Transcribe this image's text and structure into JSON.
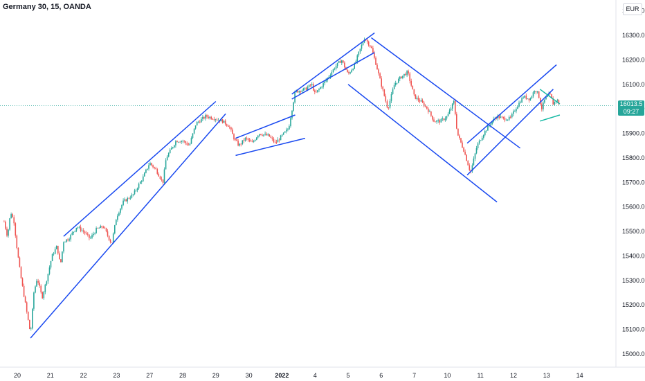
{
  "header": {
    "symbol_title": "Germany 30, 15, OANDA",
    "currency": "EUR"
  },
  "price_badge": {
    "price": "16013.5",
    "countdown": "09:27"
  },
  "colors": {
    "up": "#26a69a",
    "down": "#ef5350",
    "channel": "#1848f0",
    "triangle": "#16b9a4",
    "current_price_line": "#26a69a"
  },
  "chart_data": {
    "type": "candlestick",
    "title": "Germany 30, 15, OANDA",
    "ylim": [
      14950,
      16450
    ],
    "y_ticks": [
      15000,
      15100,
      15200,
      15300,
      15400,
      15500,
      15600,
      15700,
      15800,
      15900,
      16000,
      16100,
      16200,
      16300,
      16400
    ],
    "y_tick_labels": [
      "15000.0",
      "15100.0",
      "15200.0",
      "15300.0",
      "15400.0",
      "15500.0",
      "15600.0",
      "15700.0",
      "15800.0",
      "15900.0",
      "16000.0",
      "16100.0",
      "16200.0",
      "16300.0",
      "16400.0"
    ],
    "x_ticks": [
      {
        "label": "20",
        "t": 0
      },
      {
        "label": "21",
        "t": 1
      },
      {
        "label": "22",
        "t": 2
      },
      {
        "label": "23",
        "t": 3
      },
      {
        "label": "27",
        "t": 4
      },
      {
        "label": "28",
        "t": 5
      },
      {
        "label": "29",
        "t": 6
      },
      {
        "label": "30",
        "t": 7
      },
      {
        "label": "2022",
        "t": 8,
        "bold": true
      },
      {
        "label": "4",
        "t": 9
      },
      {
        "label": "5",
        "t": 10
      },
      {
        "label": "6",
        "t": 11
      },
      {
        "label": "7",
        "t": 12
      },
      {
        "label": "10",
        "t": 13
      },
      {
        "label": "11",
        "t": 14
      },
      {
        "label": "12",
        "t": 15
      },
      {
        "label": "13",
        "t": 16
      },
      {
        "label": "14",
        "t": 17
      }
    ],
    "current_price": 16013.5,
    "price_path": [
      [
        -0.4,
        15540
      ],
      [
        -0.3,
        15480
      ],
      [
        -0.2,
        15580
      ],
      [
        -0.1,
        15540
      ],
      [
        0.0,
        15420
      ],
      [
        0.1,
        15320
      ],
      [
        0.25,
        15200
      ],
      [
        0.4,
        15080
      ],
      [
        0.5,
        15250
      ],
      [
        0.6,
        15310
      ],
      [
        0.75,
        15230
      ],
      [
        0.9,
        15310
      ],
      [
        1.05,
        15400
      ],
      [
        1.2,
        15440
      ],
      [
        1.3,
        15360
      ],
      [
        1.4,
        15460
      ],
      [
        1.55,
        15470
      ],
      [
        1.8,
        15520
      ],
      [
        2.0,
        15500
      ],
      [
        2.2,
        15470
      ],
      [
        2.4,
        15510
      ],
      [
        2.6,
        15520
      ],
      [
        2.85,
        15450
      ],
      [
        3.0,
        15560
      ],
      [
        3.2,
        15620
      ],
      [
        3.5,
        15650
      ],
      [
        3.8,
        15720
      ],
      [
        4.0,
        15780
      ],
      [
        4.2,
        15750
      ],
      [
        4.4,
        15700
      ],
      [
        4.5,
        15800
      ],
      [
        4.8,
        15870
      ],
      [
        5.0,
        15870
      ],
      [
        5.2,
        15850
      ],
      [
        5.4,
        15940
      ],
      [
        5.7,
        15970
      ],
      [
        6.0,
        15960
      ],
      [
        6.2,
        15950
      ],
      [
        6.4,
        15930
      ],
      [
        6.55,
        15880
      ],
      [
        6.7,
        15850
      ],
      [
        6.9,
        15880
      ],
      [
        7.1,
        15860
      ],
      [
        7.3,
        15900
      ],
      [
        7.6,
        15890
      ],
      [
        7.8,
        15860
      ],
      [
        8.0,
        15890
      ],
      [
        8.2,
        15920
      ],
      [
        8.4,
        16070
      ],
      [
        8.7,
        16080
      ],
      [
        8.9,
        16100
      ],
      [
        9.0,
        16060
      ],
      [
        9.3,
        16110
      ],
      [
        9.6,
        16170
      ],
      [
        9.8,
        16200
      ],
      [
        10.0,
        16140
      ],
      [
        10.2,
        16180
      ],
      [
        10.3,
        16220
      ],
      [
        10.5,
        16290
      ],
      [
        10.7,
        16250
      ],
      [
        10.85,
        16180
      ],
      [
        11.0,
        16100
      ],
      [
        11.2,
        16000
      ],
      [
        11.4,
        16100
      ],
      [
        11.6,
        16130
      ],
      [
        11.8,
        16150
      ],
      [
        12.0,
        16050
      ],
      [
        12.2,
        16030
      ],
      [
        12.4,
        16000
      ],
      [
        12.6,
        15950
      ],
      [
        12.8,
        15950
      ],
      [
        13.0,
        15970
      ],
      [
        13.2,
        16030
      ],
      [
        13.3,
        15900
      ],
      [
        13.5,
        15830
      ],
      [
        13.7,
        15740
      ],
      [
        13.9,
        15850
      ],
      [
        14.1,
        15900
      ],
      [
        14.3,
        15940
      ],
      [
        14.5,
        15970
      ],
      [
        14.7,
        15960
      ],
      [
        14.9,
        15960
      ],
      [
        15.1,
        16010
      ],
      [
        15.3,
        16050
      ],
      [
        15.5,
        16040
      ],
      [
        15.65,
        16080
      ],
      [
        15.75,
        16060
      ],
      [
        15.85,
        16000
      ],
      [
        15.95,
        16040
      ],
      [
        16.1,
        16060
      ],
      [
        16.2,
        16020
      ],
      [
        16.3,
        16040
      ],
      [
        16.4,
        16013.5
      ]
    ],
    "trendlines": [
      {
        "name": "channel-1-lower",
        "color": "channel",
        "points": [
          [
            0.4,
            15065
          ],
          [
            6.3,
            15980
          ]
        ]
      },
      {
        "name": "channel-1-upper",
        "color": "channel",
        "points": [
          [
            1.4,
            15480
          ],
          [
            6.0,
            16030
          ]
        ]
      },
      {
        "name": "flag-1-upper",
        "color": "channel",
        "points": [
          [
            6.6,
            15880
          ],
          [
            8.4,
            15975
          ]
        ]
      },
      {
        "name": "flag-1-lower",
        "color": "channel",
        "points": [
          [
            6.6,
            15810
          ],
          [
            8.7,
            15880
          ]
        ]
      },
      {
        "name": "channel-2-lower",
        "color": "channel",
        "points": [
          [
            8.3,
            16040
          ],
          [
            10.8,
            16230
          ]
        ]
      },
      {
        "name": "channel-2-upper",
        "color": "channel",
        "points": [
          [
            8.3,
            16060
          ],
          [
            10.8,
            16310
          ]
        ]
      },
      {
        "name": "channel-3-upper",
        "color": "channel",
        "points": [
          [
            10.7,
            16290
          ],
          [
            15.2,
            15840
          ]
        ]
      },
      {
        "name": "channel-3-lower",
        "color": "channel",
        "points": [
          [
            10.0,
            16100
          ],
          [
            14.5,
            15620
          ]
        ]
      },
      {
        "name": "channel-4-lower",
        "color": "channel",
        "points": [
          [
            13.6,
            15730
          ],
          [
            16.2,
            16080
          ]
        ]
      },
      {
        "name": "channel-4-upper",
        "color": "channel",
        "points": [
          [
            13.6,
            15860
          ],
          [
            16.3,
            16180
          ]
        ]
      },
      {
        "name": "triangle-upper",
        "color": "triangle",
        "points": [
          [
            15.8,
            16080
          ],
          [
            16.4,
            16020
          ]
        ]
      },
      {
        "name": "triangle-lower",
        "color": "triangle",
        "points": [
          [
            15.8,
            15950
          ],
          [
            16.4,
            15975
          ]
        ]
      }
    ]
  }
}
